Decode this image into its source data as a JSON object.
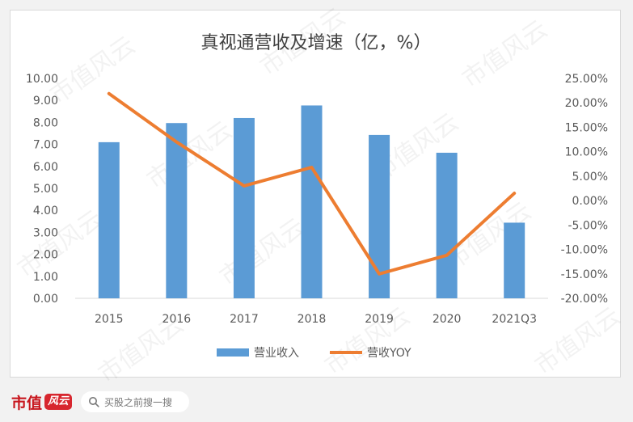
{
  "chart_data": {
    "type": "bar",
    "title": "真视通营收及增速（亿，%）",
    "categories": [
      "2015",
      "2016",
      "2017",
      "2018",
      "2019",
      "2020",
      "2021Q3"
    ],
    "series": [
      {
        "name": "营业收入",
        "type": "bar",
        "axis": "left",
        "color": "#5b9bd5",
        "values": [
          7.1,
          7.97,
          8.2,
          8.77,
          7.43,
          6.62,
          3.44
        ]
      },
      {
        "name": "营收YOY",
        "type": "line",
        "axis": "right",
        "color": "#ed7d31",
        "values": [
          21.9,
          12.0,
          3.0,
          6.8,
          -15.0,
          -11.2,
          1.5
        ]
      }
    ],
    "y_left": {
      "min": 0,
      "max": 10,
      "step": 1,
      "tick_labels": [
        "0.00",
        "1.00",
        "2.00",
        "3.00",
        "4.00",
        "5.00",
        "6.00",
        "7.00",
        "8.00",
        "9.00",
        "10.00"
      ]
    },
    "y_right": {
      "min": -20,
      "max": 25,
      "step": 5,
      "tick_labels": [
        "-20.00%",
        "-15.00%",
        "-10.00%",
        "-5.00%",
        "0.00%",
        "5.00%",
        "10.00%",
        "15.00%",
        "20.00%",
        "25.00%"
      ]
    },
    "legend_position": "bottom",
    "grid": false
  },
  "watermark": "市值风云",
  "footer": {
    "brand_text": "市值",
    "brand_mark": "风云",
    "search_placeholder": "买股之前搜一搜"
  }
}
